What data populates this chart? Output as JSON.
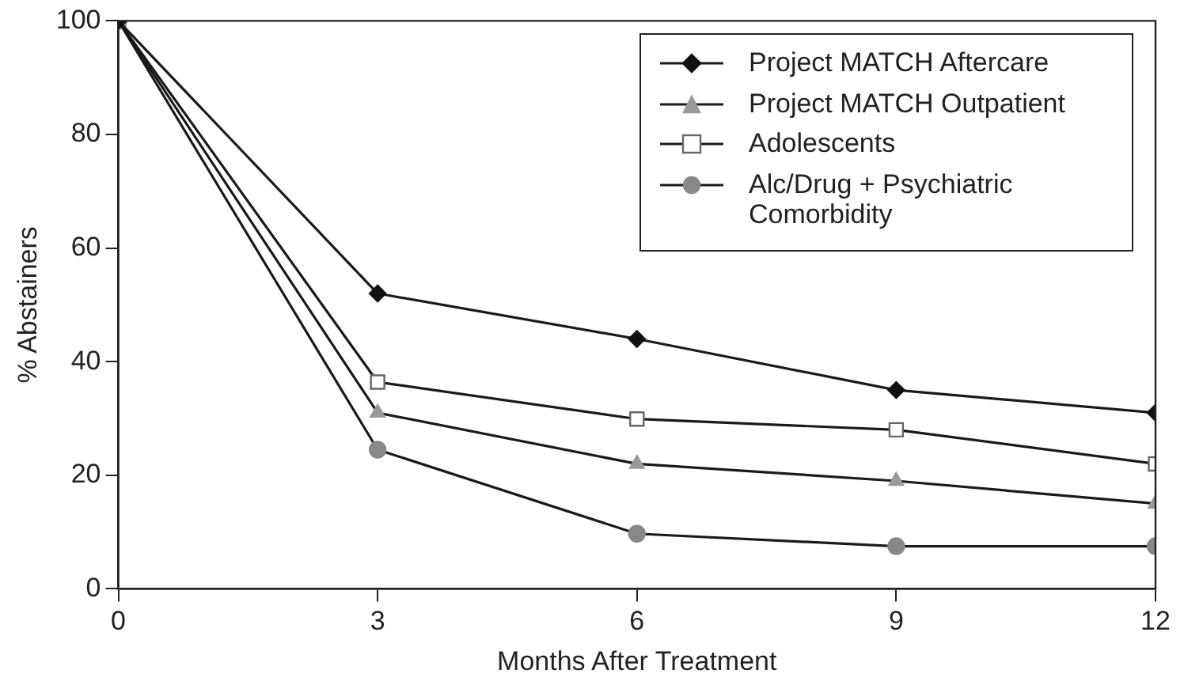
{
  "chart_data": {
    "type": "line",
    "xlabel": "Months After Treatment",
    "ylabel": "% Abstainers",
    "x": [
      0,
      3,
      6,
      9,
      12
    ],
    "series": [
      {
        "name": "Project MATCH Aftercare",
        "color": "#111111",
        "marker": "diamond",
        "values": [
          100,
          52,
          44,
          35,
          31
        ]
      },
      {
        "name": "Project MATCH Outpatient",
        "color": "#999999",
        "marker": "triangle",
        "values": [
          100,
          31,
          22,
          19,
          15
        ]
      },
      {
        "name": "Adolescents",
        "color": "#ffffff",
        "marker": "square",
        "values": [
          100,
          36.4,
          29.9,
          28,
          22
        ]
      },
      {
        "name": "Alc/Drug + Psychiatric Comorbidity",
        "color": "#888888",
        "marker": "circle",
        "values": [
          100,
          24.5,
          9.7,
          7.5,
          7.5
        ]
      }
    ],
    "xlim": [
      0,
      12
    ],
    "xticks": [
      0,
      3,
      6,
      9,
      12
    ],
    "ylim": [
      0,
      100
    ],
    "yticks": [
      0,
      20,
      40,
      60,
      80,
      100
    ],
    "grid": false,
    "legend": "top right",
    "line_style": "solid"
  }
}
